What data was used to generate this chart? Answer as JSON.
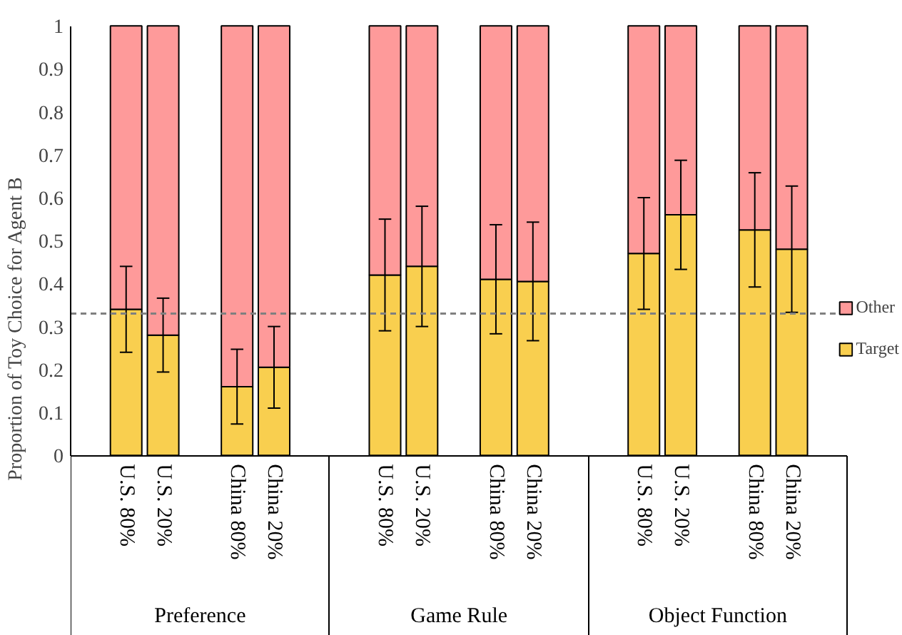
{
  "chart_data": {
    "type": "bar",
    "stacked": true,
    "ylabel": "Proportion of Toy Choice for Agent B",
    "categories": [
      "U.S. 80%",
      "U.S. 20%",
      "China 80%",
      "China 20%",
      "U.S. 80%",
      "U.S. 20%",
      "China 80%",
      "China 20%",
      "U.S. 80%",
      "U.S. 20%",
      "China 80%",
      "China 20%"
    ],
    "series": [
      {
        "name": "Target",
        "color": "#f9cf4f",
        "values": [
          0.34,
          0.28,
          0.16,
          0.205,
          0.42,
          0.44,
          0.41,
          0.405,
          0.47,
          0.56,
          0.525,
          0.48
        ],
        "errors": [
          0.1,
          0.086,
          0.087,
          0.095,
          0.13,
          0.14,
          0.127,
          0.138,
          0.13,
          0.127,
          0.133,
          0.147
        ]
      },
      {
        "name": "Other",
        "color": "#fe9a9a",
        "values": [
          0.66,
          0.72,
          0.84,
          0.795,
          0.58,
          0.56,
          0.59,
          0.595,
          0.53,
          0.44,
          0.475,
          0.52
        ]
      }
    ],
    "annotations": [
      "Preference",
      "Game Rule",
      "Object Function"
    ],
    "ref_lines": [
      {
        "axis": "y",
        "value": 0.33,
        "color": "#808080",
        "line_style": "dashed"
      }
    ],
    "ylim": [
      0,
      1
    ],
    "yticks": [
      0,
      0.1,
      0.2,
      0.3,
      0.4,
      0.5,
      0.6,
      0.7,
      0.8,
      0.9,
      1
    ],
    "grid": false,
    "legend": "right"
  }
}
